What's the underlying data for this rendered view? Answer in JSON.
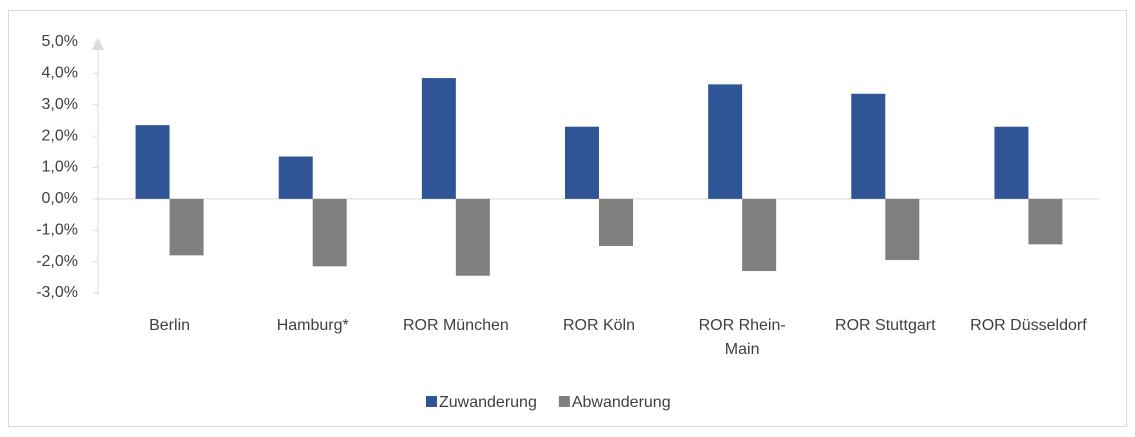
{
  "chart_data": {
    "type": "bar",
    "categories": [
      "Berlin",
      "Hamburg*",
      "ROR München",
      "ROR Köln",
      "ROR Rhein-Main",
      "ROR Stuttgart",
      "ROR Düsseldorf"
    ],
    "series": [
      {
        "name": "Zuwanderung",
        "color": "#2f5597",
        "values": [
          2.35,
          1.35,
          3.85,
          2.3,
          3.65,
          3.35,
          2.3
        ]
      },
      {
        "name": "Abwanderung",
        "color": "#7f7f7f",
        "values": [
          -1.8,
          -2.15,
          -2.45,
          -1.5,
          -2.3,
          -1.95,
          -1.45
        ]
      }
    ],
    "ylim": [
      -3,
      5
    ],
    "yticks": [
      {
        "value": -3,
        "label": "-3,0%"
      },
      {
        "value": -2,
        "label": "-2,0%"
      },
      {
        "value": -1,
        "label": "-1,0%"
      },
      {
        "value": 0,
        "label": "0,0%"
      },
      {
        "value": 1,
        "label": "1,0%"
      },
      {
        "value": 2,
        "label": "2,0%"
      },
      {
        "value": 3,
        "label": "3,0%"
      },
      {
        "value": 4,
        "label": "4,0%"
      },
      {
        "value": 5,
        "label": "5,0%"
      }
    ],
    "legend": "bottom"
  }
}
